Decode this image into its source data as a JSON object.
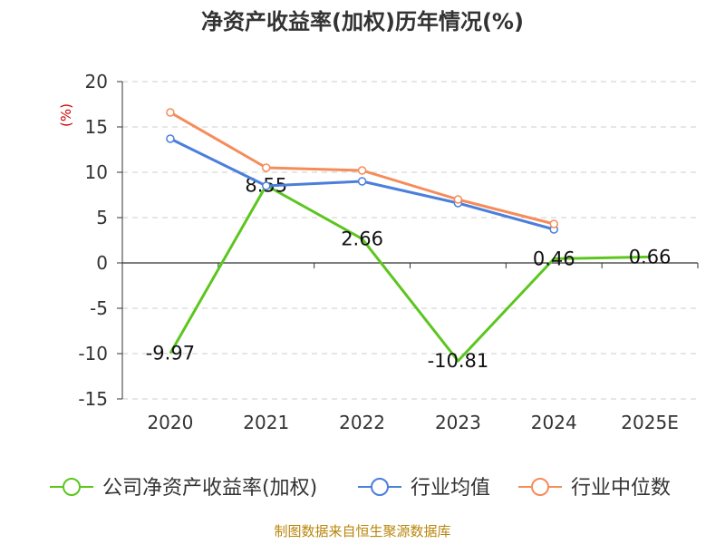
{
  "title": "净资产收益率(加权)历年情况(%)",
  "footer": "制图数据来自恒生聚源数据库",
  "chart_data": {
    "type": "line",
    "title": "净资产收益率(加权)历年情况(%)",
    "ylabel": "(%)",
    "xlabel": "",
    "categories": [
      "2020",
      "2021",
      "2022",
      "2023",
      "2024",
      "2025E"
    ],
    "ylim": [
      -15,
      20
    ],
    "yticks": [
      20,
      15,
      10,
      5,
      0,
      -5,
      -10,
      -15
    ],
    "grid": true,
    "legend_position": "bottom",
    "series": [
      {
        "name": "公司净资产收益率(加权)",
        "color": "#5cc61f",
        "values": [
          -9.97,
          8.55,
          2.66,
          -10.81,
          0.46,
          0.66
        ],
        "labels": [
          "-9.97",
          "8.55",
          "2.66",
          "-10.81",
          "0.46",
          "0.66"
        ],
        "marker": "none"
      },
      {
        "name": "行业均值",
        "color": "#4b7fdb",
        "values": [
          13.7,
          8.5,
          9.0,
          6.6,
          3.7,
          null
        ],
        "marker": "circle"
      },
      {
        "name": "行业中位数",
        "color": "#f58c5a",
        "values": [
          16.6,
          10.5,
          10.2,
          7.0,
          4.3,
          null
        ],
        "marker": "circle"
      }
    ]
  }
}
